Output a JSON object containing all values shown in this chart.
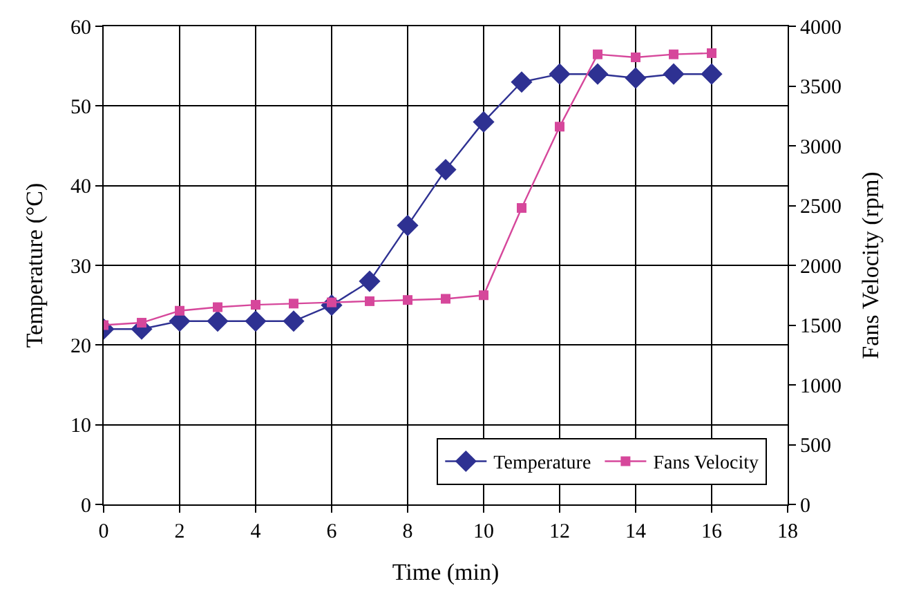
{
  "chart_data": {
    "type": "line",
    "xlabel": "Time (min)",
    "ylabel": "Temperature (°C)",
    "y2label": "Fans Velocity (rpm)",
    "x": [
      0,
      1,
      2,
      3,
      4,
      5,
      6,
      7,
      8,
      9,
      10,
      11,
      12,
      13,
      14,
      15,
      16
    ],
    "series": [
      {
        "name": "Temperature",
        "color": "#2e3192",
        "marker": "diamond",
        "values": [
          22,
          22,
          23,
          23,
          23,
          23,
          25,
          28,
          35,
          42,
          48,
          53,
          54,
          54,
          53.5,
          54,
          54
        ]
      },
      {
        "name": "Fans Velocity",
        "color": "#d6479b",
        "marker": "square",
        "axis": "y2",
        "values": [
          1500,
          1520,
          1620,
          1650,
          1670,
          1680,
          1690,
          1700,
          1710,
          1720,
          1750,
          2480,
          3160,
          3765,
          3740,
          3765,
          3775
        ]
      }
    ],
    "xlim": [
      0,
      18
    ],
    "xticks": [
      0,
      2,
      4,
      6,
      8,
      10,
      12,
      14,
      16,
      18
    ],
    "ylim": [
      0,
      60
    ],
    "yticks": [
      0,
      10,
      20,
      30,
      40,
      50,
      60
    ],
    "y2lim": [
      0,
      4000
    ],
    "y2ticks": [
      0,
      500,
      1000,
      1500,
      2000,
      2500,
      3000,
      3500,
      4000
    ],
    "grid": true,
    "legend": "bottom right"
  }
}
